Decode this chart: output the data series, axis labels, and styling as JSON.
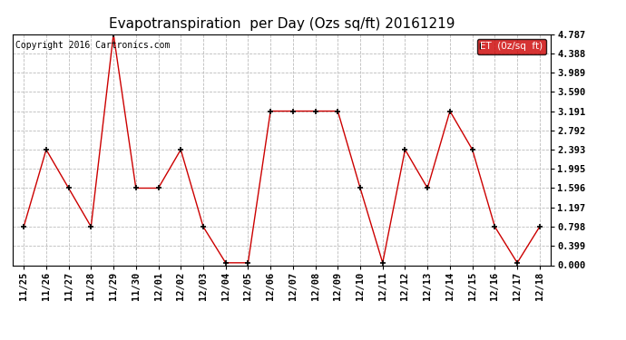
{
  "title": "Evapotranspiration  per Day (Ozs sq/ft) 20161219",
  "copyright": "Copyright 2016 Cartronics.com",
  "legend_label": "ET  (0z/sq  ft)",
  "x_labels": [
    "11/25",
    "11/26",
    "11/27",
    "11/28",
    "11/29",
    "11/30",
    "12/01",
    "12/02",
    "12/03",
    "12/04",
    "12/05",
    "12/06",
    "12/07",
    "12/08",
    "12/09",
    "12/10",
    "12/11",
    "12/12",
    "12/13",
    "12/14",
    "12/15",
    "12/16",
    "12/17",
    "12/18"
  ],
  "y_values": [
    0.798,
    2.393,
    1.596,
    0.798,
    4.787,
    1.596,
    1.596,
    2.393,
    0.798,
    0.05,
    0.05,
    3.191,
    3.191,
    3.191,
    3.191,
    1.596,
    0.05,
    2.393,
    1.596,
    3.191,
    2.393,
    0.798,
    0.05,
    0.798
  ],
  "yticks": [
    0.0,
    0.399,
    0.798,
    1.197,
    1.596,
    1.995,
    2.393,
    2.792,
    3.191,
    3.59,
    3.989,
    4.388,
    4.787
  ],
  "ytick_labels": [
    "0.000",
    "0.399",
    "0.798",
    "1.197",
    "1.596",
    "1.995",
    "2.393",
    "2.792",
    "3.191",
    "3.590",
    "3.989",
    "4.388",
    "4.787"
  ],
  "ylim": [
    0.0,
    4.787
  ],
  "line_color": "#cc0000",
  "marker_color": "black",
  "background_color": "#ffffff",
  "grid_color": "#bbbbbb",
  "title_fontsize": 11,
  "tick_fontsize": 7.5,
  "copyright_fontsize": 7,
  "legend_bg": "#cc0000",
  "legend_fg": "#ffffff",
  "fig_width": 6.9,
  "fig_height": 3.75,
  "dpi": 100
}
